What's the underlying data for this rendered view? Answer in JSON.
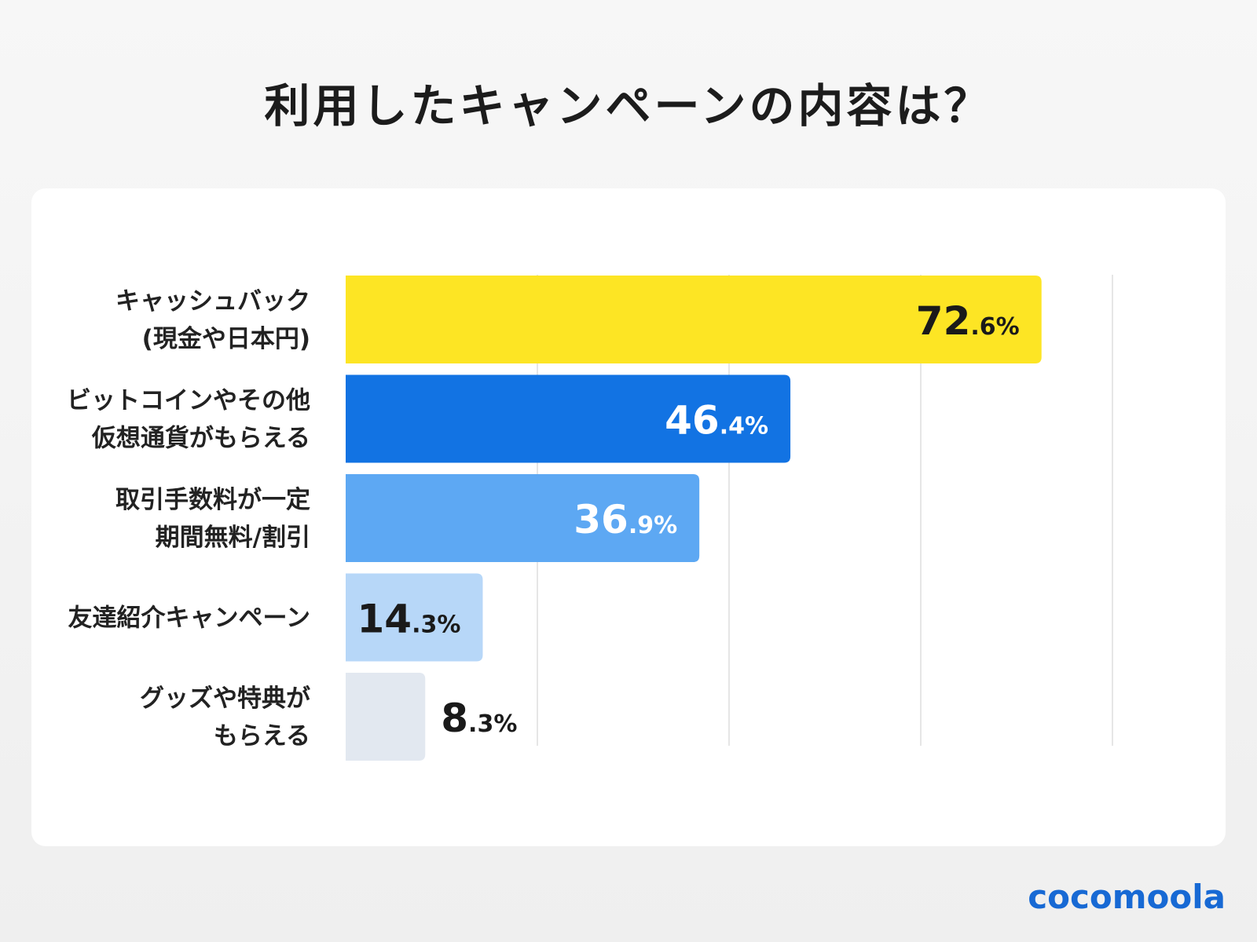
{
  "title": "利用したキャンペーンの内容は？",
  "logo": "cocomoola",
  "colors": {
    "bars": [
      "#fde524",
      "#1273e3",
      "#5da8f3",
      "#b7d7f8",
      "#e2e8f0"
    ],
    "value_text": [
      "#1a1a1a",
      "#ffffff",
      "#ffffff",
      "#1a1a1a",
      "#1a1a1a"
    ],
    "grid": "#dddddd",
    "label": "#222222",
    "logo": "#1769d4"
  },
  "chart_data": {
    "type": "bar",
    "orientation": "horizontal",
    "title": "利用したキャンペーンの内容は？",
    "xlim": [
      0,
      100
    ],
    "grid": true,
    "categories": [
      [
        "キャッシュバック",
        "(現金や日本円)"
      ],
      [
        "ビットコインやその他",
        "仮想通貨がもらえる"
      ],
      [
        "取引手数料が一定",
        "期間無料/割引"
      ],
      [
        "友達紹介キャンペーン"
      ],
      [
        "グッズや特典が",
        "もらえる"
      ]
    ],
    "values": [
      72.6,
      46.4,
      36.9,
      14.3,
      8.3
    ],
    "value_labels": [
      {
        "int": "72",
        "dec": ".6",
        "unit": "%"
      },
      {
        "int": "46",
        "dec": ".4",
        "unit": "%"
      },
      {
        "int": "36",
        "dec": ".9",
        "unit": "%"
      },
      {
        "int": "14",
        "dec": ".3",
        "unit": "%"
      },
      {
        "int": "8",
        "dec": ".3",
        "unit": "%"
      }
    ]
  }
}
